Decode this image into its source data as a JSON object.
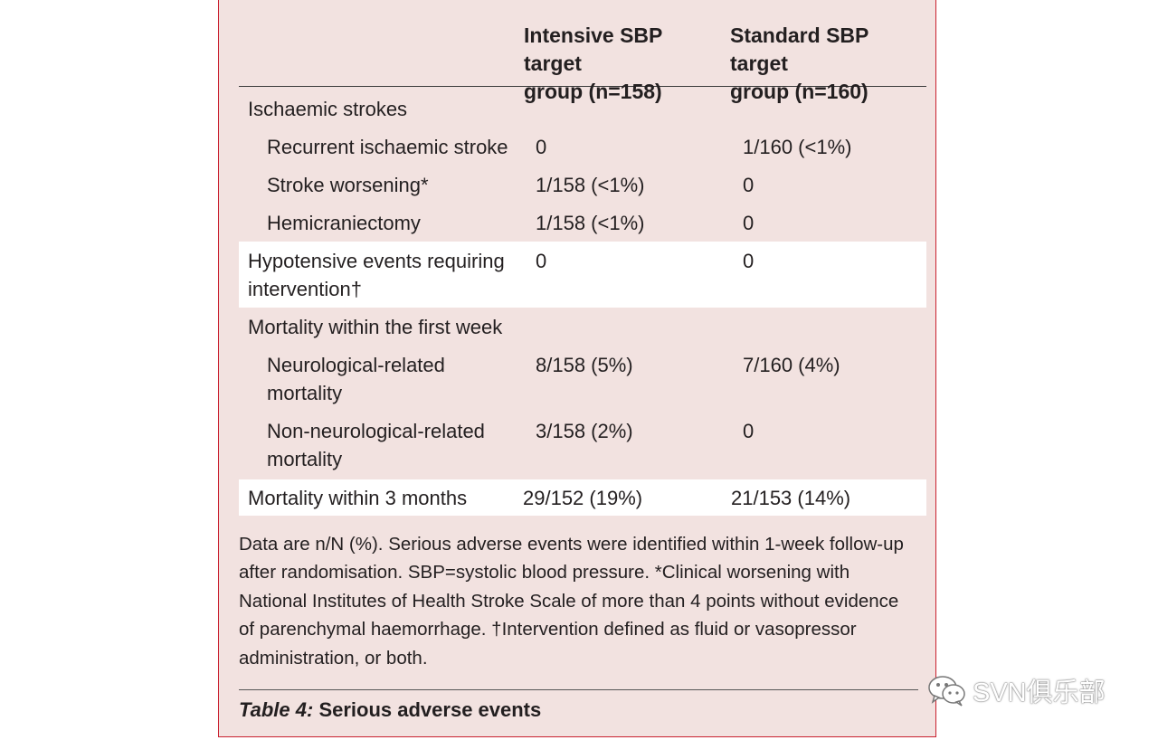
{
  "table": {
    "headers": {
      "intensive_line1": "Intensive SBP target",
      "intensive_line2": "group (n=158)",
      "standard_line1": "Standard SBP target",
      "standard_line2": "group (n=160)"
    },
    "rows": [
      {
        "label": "Ischaemic strokes",
        "intensive": "",
        "standard": ""
      },
      {
        "label": "Recurrent ischaemic stroke",
        "intensive": "0",
        "standard": "1/160 (<1%)"
      },
      {
        "label": "Stroke worsening*",
        "intensive": "1/158 (<1%)",
        "standard": "0"
      },
      {
        "label": "Hemicraniectomy",
        "intensive": "1/158 (<1%)",
        "standard": "0"
      },
      {
        "label_line1": "Hypotensive events requiring",
        "label_line2": "intervention†",
        "intensive": "0",
        "standard": "0"
      },
      {
        "label": "Mortality within the first week",
        "intensive": "",
        "standard": ""
      },
      {
        "label_line1": "Neurological-related",
        "label_line2": "mortality",
        "intensive": "8/158 (5%)",
        "standard": "7/160 (4%)"
      },
      {
        "label_line1": "Non-neurological-related",
        "label_line2": "mortality",
        "intensive": "3/158 (2%)",
        "standard": "0"
      },
      {
        "label": "Mortality within 3 months",
        "intensive": "29/152 (19%)",
        "standard": "21/153 (14%)"
      }
    ]
  },
  "footnote": {
    "line1": "Data are n/N (%). Serious adverse events were identified within 1-week follow-up",
    "line2": "after randomisation. SBP=systolic blood pressure. *Clinical worsening with",
    "line3": "National Institutes of Health Stroke Scale of more than 4 points without evidence",
    "line4": "of parenchymal haemorrhage. †Intervention defined as fluid or vasopressor",
    "line5": "administration, or both."
  },
  "caption": {
    "label": "Table 4:",
    "title": " Serious adverse events"
  },
  "watermark": {
    "text": "SVN俱乐部",
    "icon": "wechat-icon"
  }
}
